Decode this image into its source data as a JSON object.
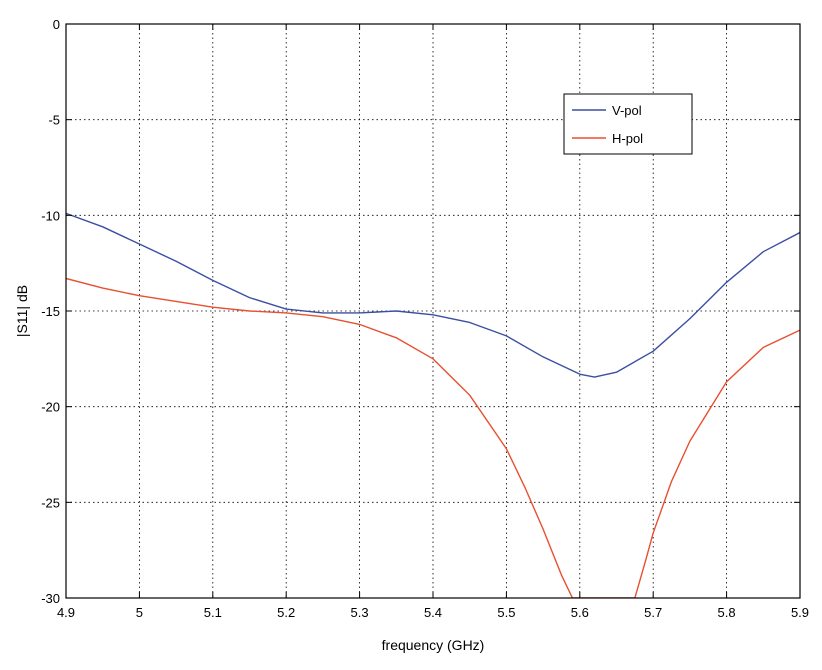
{
  "chart_data": {
    "type": "line",
    "title": "",
    "xlabel": "frequency (GHz)",
    "ylabel": "|S11| dB",
    "xlim": [
      4.9,
      5.9
    ],
    "ylim": [
      -30,
      0
    ],
    "grid": true,
    "legend_position": "top-right",
    "x_ticks": [
      "4.9",
      "5",
      "5.1",
      "5.2",
      "5.3",
      "5.4",
      "5.5",
      "5.6",
      "5.7",
      "5.8",
      "5.9"
    ],
    "y_ticks": [
      "0",
      "-5",
      "-10",
      "-15",
      "-20",
      "-25",
      "-30"
    ],
    "series": [
      {
        "name": "V-pol",
        "color": "#3b4fa3",
        "x": [
          4.9,
          4.95,
          5.0,
          5.05,
          5.1,
          5.15,
          5.2,
          5.25,
          5.3,
          5.35,
          5.4,
          5.45,
          5.5,
          5.55,
          5.6,
          5.62,
          5.65,
          5.7,
          5.75,
          5.8,
          5.85,
          5.9
        ],
        "y": [
          -9.9,
          -10.6,
          -11.5,
          -12.4,
          -13.4,
          -14.3,
          -14.9,
          -15.1,
          -15.1,
          -15.0,
          -15.2,
          -15.6,
          -16.3,
          -17.4,
          -18.3,
          -18.45,
          -18.2,
          -17.1,
          -15.4,
          -13.5,
          -11.9,
          -10.9
        ]
      },
      {
        "name": "H-pol",
        "color": "#e8502f",
        "x": [
          4.9,
          4.95,
          5.0,
          5.05,
          5.1,
          5.15,
          5.2,
          5.25,
          5.3,
          5.35,
          5.4,
          5.45,
          5.5,
          5.525,
          5.55,
          5.575,
          5.59,
          5.675,
          5.69,
          5.7,
          5.725,
          5.75,
          5.8,
          5.85,
          5.9
        ],
        "y": [
          -13.3,
          -13.8,
          -14.2,
          -14.5,
          -14.8,
          -15.0,
          -15.1,
          -15.3,
          -15.7,
          -16.4,
          -17.5,
          -19.4,
          -22.2,
          -24.2,
          -26.4,
          -28.8,
          -30.0,
          -30.0,
          -28.0,
          -26.6,
          -23.9,
          -21.8,
          -18.7,
          -16.9,
          -16.0
        ]
      }
    ]
  }
}
